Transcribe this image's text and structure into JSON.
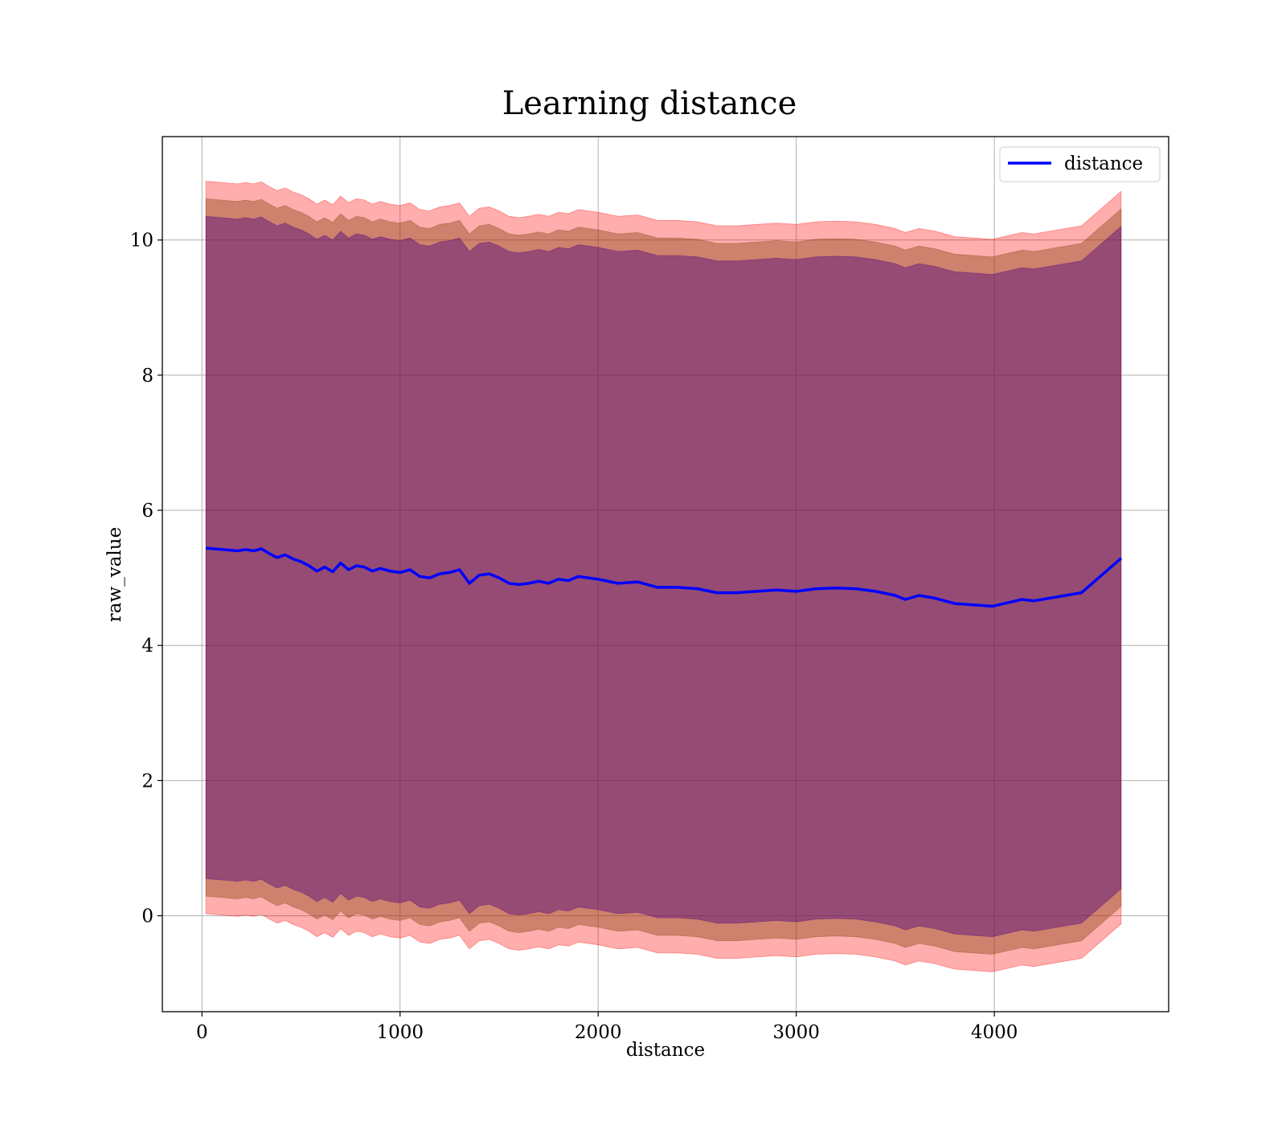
{
  "chart_data": {
    "type": "line",
    "title": "Learning distance",
    "xlabel": "distance",
    "ylabel": "raw_value",
    "xlim": [
      -200,
      4880
    ],
    "ylim": [
      -1.42,
      11.53
    ],
    "xticks": [
      0,
      1000,
      2000,
      3000,
      4000
    ],
    "xtick_labels": [
      "0",
      "1000",
      "2000",
      "3000",
      "4000"
    ],
    "yticks": [
      0,
      2,
      4,
      6,
      8,
      10
    ],
    "ytick_labels": [
      "0",
      "2",
      "4",
      "6",
      "8",
      "10"
    ],
    "grid": true,
    "legend_position": "top-right",
    "colors": {
      "line": "#0000ff",
      "outer_band": "#ff0000",
      "inner_band": "#8b4513",
      "core_band": "#4b0082",
      "grid": "#b0b0b0"
    },
    "series": [
      {
        "name": "distance",
        "x": [
          20,
          60,
          100,
          140,
          180,
          220,
          260,
          300,
          340,
          380,
          420,
          460,
          500,
          540,
          580,
          620,
          660,
          700,
          740,
          780,
          820,
          860,
          900,
          950,
          1000,
          1050,
          1100,
          1150,
          1200,
          1250,
          1300,
          1350,
          1400,
          1450,
          1500,
          1550,
          1600,
          1650,
          1700,
          1750,
          1800,
          1850,
          1900,
          1950,
          2000,
          2100,
          2200,
          2300,
          2400,
          2500,
          2600,
          2700,
          2800,
          2900,
          3000,
          3100,
          3200,
          3300,
          3400,
          3500,
          3550,
          3620,
          3700,
          3800,
          3990,
          4140,
          4200,
          4440,
          4640
        ],
        "values": [
          5.44,
          5.43,
          5.42,
          5.41,
          5.4,
          5.42,
          5.4,
          5.43,
          5.36,
          5.3,
          5.34,
          5.28,
          5.24,
          5.18,
          5.1,
          5.16,
          5.09,
          5.22,
          5.12,
          5.18,
          5.16,
          5.1,
          5.14,
          5.1,
          5.08,
          5.12,
          5.02,
          5.0,
          5.06,
          5.08,
          5.12,
          4.92,
          5.04,
          5.06,
          5.0,
          4.92,
          4.9,
          4.92,
          4.95,
          4.92,
          4.98,
          4.96,
          5.02,
          5.0,
          4.98,
          4.92,
          4.94,
          4.86,
          4.86,
          4.84,
          4.78,
          4.78,
          4.8,
          4.82,
          4.8,
          4.84,
          4.85,
          4.84,
          4.8,
          4.74,
          4.68,
          4.74,
          4.7,
          4.62,
          4.58,
          4.68,
          4.66,
          4.78,
          5.29
        ],
        "band_outer": {
          "plus": 5.43,
          "minus": 5.41
        },
        "band_inner": {
          "plus": 5.17,
          "minus": 5.15
        },
        "band_core": {
          "plus": 4.91,
          "minus": 4.89
        }
      }
    ]
  }
}
